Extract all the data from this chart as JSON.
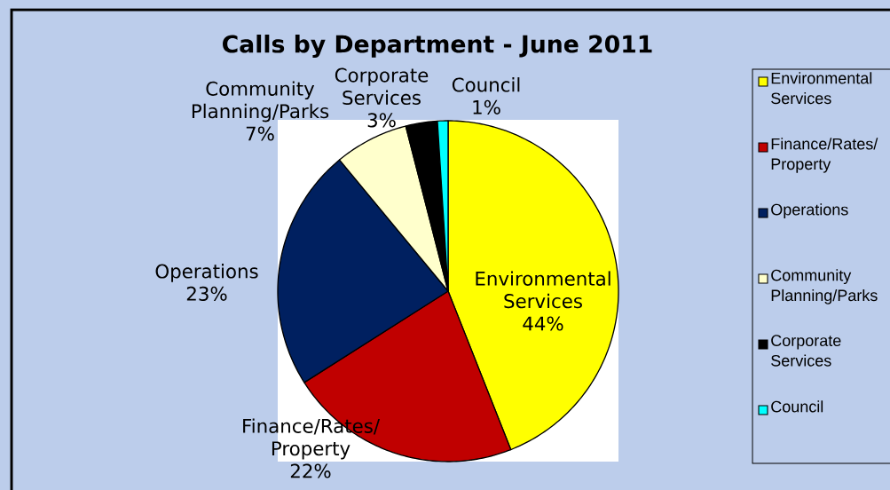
{
  "chart_data": {
    "type": "pie",
    "title": "Calls by Department - June 2011",
    "categories": [
      "Environmental Services",
      "Finance/Rates/Property",
      "Operations",
      "Community Planning/Parks",
      "Corporate Services",
      "Council"
    ],
    "values": [
      44,
      22,
      23,
      7,
      3,
      1
    ],
    "value_labels": [
      "44%",
      "22%",
      "23%",
      "7%",
      "3%",
      "1%"
    ],
    "colors": [
      "#ffff00",
      "#c00000",
      "#002060",
      "#ffffcc",
      "#000000",
      "#00ffff"
    ],
    "legend": "right"
  }
}
